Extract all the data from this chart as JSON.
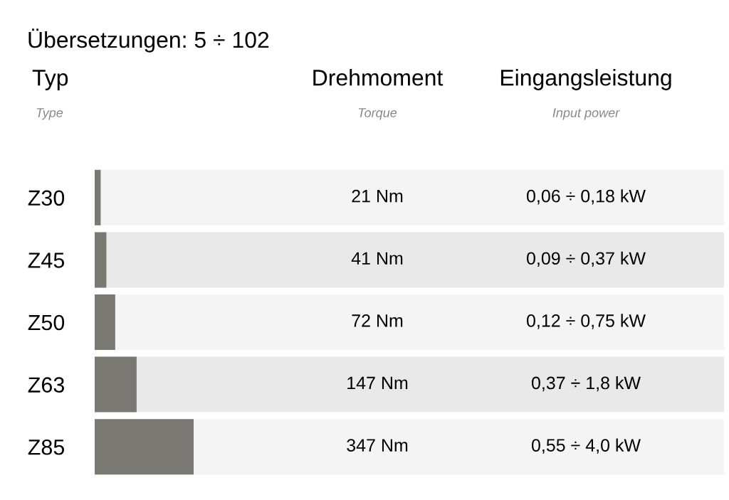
{
  "chart_data": {
    "type": "bar",
    "orientation": "horizontal",
    "title": "Übersetzungen: 5 ÷ 102",
    "categories": [
      "Z30",
      "Z45",
      "Z50",
      "Z63",
      "Z85"
    ],
    "values": [
      21,
      41,
      72,
      147,
      347
    ],
    "value_labels": [
      "21 Nm",
      "41 Nm",
      "72 Nm",
      "147 Nm",
      "347 Nm"
    ],
    "color": "#7a7872",
    "tick_labels": "y",
    "annotations": [
      "Typ",
      "Type",
      "Drehmoment",
      "Torque",
      "Eingangsleistung",
      "Input power",
      "0,06 ÷ 0,18 kW",
      "0,09 ÷ 0,37 kW",
      "0,12 ÷ 0,75 kW",
      "0,37 ÷ 1,8 kW",
      "0,55 ÷ 4,0 kW"
    ]
  }
}
